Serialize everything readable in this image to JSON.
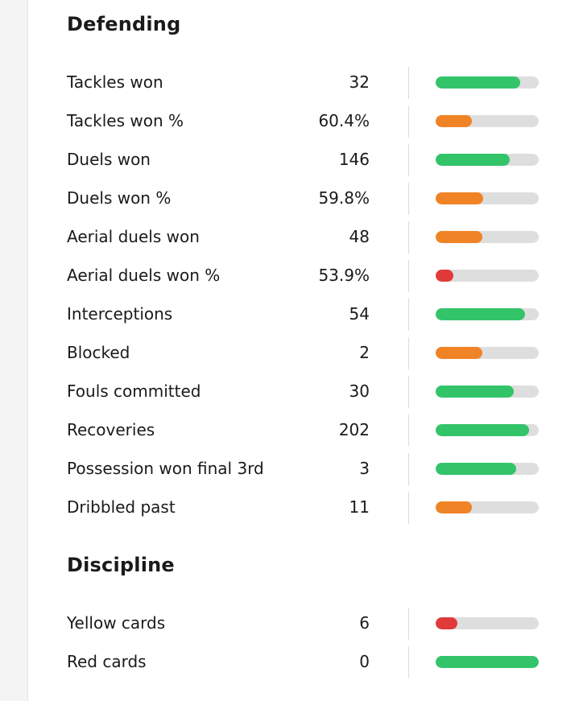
{
  "sections": [
    {
      "title": "Defending",
      "rows": [
        {
          "label": "Tackles won",
          "value": "32",
          "bar_fraction": 0.82,
          "bar_color": "#33c46a"
        },
        {
          "label": "Tackles won %",
          "value": "60.4%",
          "bar_fraction": 0.35,
          "bar_color": "#f08325"
        },
        {
          "label": "Duels won",
          "value": "146",
          "bar_fraction": 0.72,
          "bar_color": "#33c46a"
        },
        {
          "label": "Duels won %",
          "value": "59.8%",
          "bar_fraction": 0.46,
          "bar_color": "#f08325"
        },
        {
          "label": "Aerial duels won",
          "value": "48",
          "bar_fraction": 0.45,
          "bar_color": "#f08325"
        },
        {
          "label": "Aerial duels won %",
          "value": "53.9%",
          "bar_fraction": 0.17,
          "bar_color": "#e03a3a"
        },
        {
          "label": "Interceptions",
          "value": "54",
          "bar_fraction": 0.87,
          "bar_color": "#33c46a"
        },
        {
          "label": "Blocked",
          "value": "2",
          "bar_fraction": 0.45,
          "bar_color": "#f08325"
        },
        {
          "label": "Fouls committed",
          "value": "30",
          "bar_fraction": 0.76,
          "bar_color": "#33c46a"
        },
        {
          "label": "Recoveries",
          "value": "202",
          "bar_fraction": 0.91,
          "bar_color": "#33c46a"
        },
        {
          "label": "Possession won final 3rd",
          "value": "3",
          "bar_fraction": 0.78,
          "bar_color": "#33c46a"
        },
        {
          "label": "Dribbled past",
          "value": "11",
          "bar_fraction": 0.35,
          "bar_color": "#f08325"
        }
      ]
    },
    {
      "title": "Discipline",
      "rows": [
        {
          "label": "Yellow cards",
          "value": "6",
          "bar_fraction": 0.21,
          "bar_color": "#e03a3a"
        },
        {
          "label": "Red cards",
          "value": "0",
          "bar_fraction": 1.0,
          "bar_color": "#33c46a"
        }
      ]
    }
  ]
}
